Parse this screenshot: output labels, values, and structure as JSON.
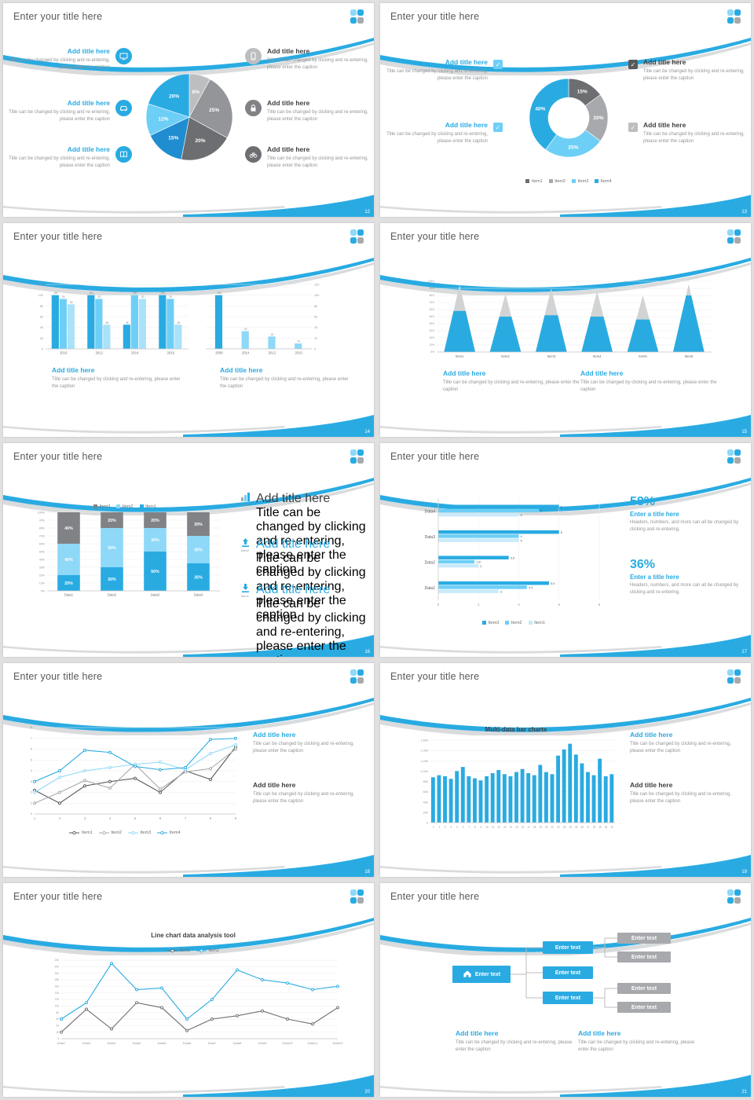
{
  "window": {
    "background": "#e0e0e0"
  },
  "common": {
    "slide_title": "Enter your title here",
    "add_title": "Add title here",
    "caption": "Title can be changed by clicking and re-entering, please enter the caption",
    "stat_caption": "Headers, numbers, and more can all be changed by clicking and re-entering.",
    "enter_a_title": "Enter a title here",
    "enter_text": "Enter text",
    "accent_blue": "#29abe2",
    "light_blue": "#6dcff6",
    "dark_gray": "#6d6e71",
    "mid_gray": "#a7a9ac"
  },
  "slides": [
    {
      "page": "12"
    },
    {
      "page": "13"
    },
    {
      "page": "14"
    },
    {
      "page": "15"
    },
    {
      "page": "16"
    },
    {
      "page": "17",
      "stat1": "58%",
      "stat2": "36%"
    },
    {
      "page": "18"
    },
    {
      "page": "19"
    },
    {
      "page": "20"
    },
    {
      "page": "21"
    }
  ],
  "chart_data": [
    {
      "slide_page": "12",
      "type": "pie",
      "segments": [
        {
          "label": "8%",
          "value": 8,
          "color": "#bcbec0"
        },
        {
          "label": "25%",
          "value": 25,
          "color": "#939598"
        },
        {
          "label": "20%",
          "value": 20,
          "color": "#6d6e71"
        },
        {
          "label": "15%",
          "value": 15,
          "color": "#1f8dd0"
        },
        {
          "label": "12%",
          "value": 12,
          "color": "#6dcff6"
        },
        {
          "label": "20%",
          "value": 20,
          "color": "#29abe2"
        }
      ]
    },
    {
      "slide_page": "13",
      "type": "pie",
      "donut": true,
      "segments": [
        {
          "label": "15%",
          "value": 15,
          "color": "#6d6e71"
        },
        {
          "label": "20%",
          "value": 20,
          "color": "#a7a9ac"
        },
        {
          "label": "25%",
          "value": 25,
          "color": "#6dcff6"
        },
        {
          "label": "40%",
          "value": 40,
          "color": "#29abe2"
        }
      ],
      "legend": [
        {
          "label": "Item1",
          "color": "#6d6e71"
        },
        {
          "label": "Item2",
          "color": "#a7a9ac"
        },
        {
          "label": "Item3",
          "color": "#6dcff6"
        },
        {
          "label": "Item4",
          "color": "#29abe2"
        }
      ]
    },
    {
      "slide_page": "14",
      "type": "bar",
      "categories": [
        "2010",
        "2012",
        "2014",
        "2016"
      ],
      "series": [
        {
          "name": "series1",
          "color": "#29abe2",
          "values": [
            100,
            100,
            45,
            100
          ]
        },
        {
          "name": "series2",
          "color": "#6dcff6",
          "values": [
            93,
            93,
            100,
            93
          ]
        },
        {
          "name": "series3",
          "color": "#a9e2f9",
          "values": [
            83,
            45,
            93,
            45
          ]
        }
      ],
      "ylim": [
        0,
        120
      ],
      "ytick_step": 20
    },
    {
      "slide_page": "14",
      "type": "bar",
      "categories": [
        "2008",
        "2014",
        "2012",
        "2010"
      ],
      "series": [
        {
          "name": "series1",
          "colors": [
            "#29abe2",
            "#8ed8f8",
            "#8ed8f8",
            "#8ed8f8"
          ],
          "values": [
            100,
            33,
            23,
            10
          ]
        }
      ],
      "ylim": [
        0,
        120
      ],
      "ytick_step": 20,
      "axis_side": "right"
    },
    {
      "slide_page": "15",
      "type": "pyramid",
      "categories": [
        "Item1",
        "Item2",
        "Item3",
        "Item4",
        "Item5",
        "Item6"
      ],
      "total_pct": [
        95,
        82,
        90,
        86,
        80,
        96
      ],
      "filled_pct": [
        58,
        50,
        52,
        50,
        46,
        80
      ],
      "fill_color": "#29abe2",
      "top_color": "#d1d3d4",
      "ylim": [
        0,
        100
      ],
      "ytick_step": 10
    },
    {
      "slide_page": "16",
      "type": "stacked_bar",
      "categories": [
        "Data1",
        "Data2",
        "Data3",
        "Data4"
      ],
      "series": [
        {
          "name": "Item1",
          "color": "#29abe2",
          "values": [
            20,
            30,
            50,
            35
          ]
        },
        {
          "name": "Item2",
          "color": "#8ed8f8",
          "values": [
            40,
            50,
            30,
            35
          ]
        },
        {
          "name": "Item3",
          "color": "#808285",
          "values": [
            40,
            20,
            20,
            30
          ]
        }
      ],
      "legend": [
        {
          "label": "Item3",
          "color": "#808285"
        },
        {
          "label": "Item2",
          "color": "#8ed8f8"
        },
        {
          "label": "Item1",
          "color": "#29abe2"
        }
      ],
      "ylim": [
        0,
        100
      ],
      "ytick_step": 10
    },
    {
      "slide_page": "17",
      "type": "hbar",
      "categories": [
        "Data1",
        "Data2",
        "Data3",
        "Data4"
      ],
      "series": [
        {
          "name": "Item3",
          "color": "#29abe2",
          "values": [
            5.5,
            3.5,
            6,
            6
          ]
        },
        {
          "name": "Item2",
          "color": "#6dcff6",
          "values": [
            4.4,
            1.8,
            4,
            5
          ]
        },
        {
          "name": "Item1",
          "color": "#c9eafb",
          "values": [
            3,
            2,
            4,
            4
          ]
        }
      ],
      "legend": [
        {
          "label": "Item3",
          "color": "#29abe2"
        },
        {
          "label": "Item2",
          "color": "#6dcff6"
        },
        {
          "label": "Item1",
          "color": "#c9eafb"
        }
      ],
      "xlim": [
        0,
        8
      ],
      "xtick_step": 2
    },
    {
      "slide_page": "18",
      "type": "line",
      "x": [
        "1",
        "2",
        "3",
        "4",
        "5",
        "6",
        "7",
        "8",
        "9"
      ],
      "series": [
        {
          "name": "Item1",
          "color": "#58595b",
          "values": [
            2.2,
            1.0,
            2.6,
            3.0,
            3.3,
            2.0,
            4.0,
            3.2,
            6.2
          ]
        },
        {
          "name": "Item2",
          "color": "#a7a9ac",
          "values": [
            1.0,
            2.0,
            3.1,
            2.4,
            4.6,
            2.3,
            3.9,
            4.2,
            6.0
          ]
        },
        {
          "name": "Item3",
          "color": "#8ed8f8",
          "values": [
            2.0,
            3.4,
            4.0,
            4.3,
            4.6,
            4.8,
            4.1,
            5.6,
            6.4
          ]
        },
        {
          "name": "Item4",
          "color": "#29abe2",
          "values": [
            3.0,
            4.0,
            5.9,
            5.7,
            4.4,
            4.1,
            4.3,
            6.9,
            7.0
          ]
        }
      ],
      "ylim": [
        0,
        8
      ],
      "ytick_step": 1
    },
    {
      "slide_page": "19",
      "title": "Multi-data bar charts",
      "type": "bar",
      "categories": [
        "1",
        "2",
        "3",
        "4",
        "5",
        "6",
        "7",
        "8",
        "9",
        "10",
        "11",
        "12",
        "13",
        "14",
        "15",
        "16",
        "17",
        "18",
        "19",
        "20",
        "21",
        "22",
        "23",
        "24",
        "25",
        "26",
        "27",
        "28",
        "29",
        "30",
        "31"
      ],
      "series": [
        {
          "name": "value",
          "color": "#29abe2",
          "values": [
            880,
            920,
            900,
            850,
            1000,
            1080,
            900,
            860,
            820,
            900,
            960,
            1020,
            940,
            900,
            980,
            1040,
            960,
            920,
            1120,
            980,
            940,
            1300,
            1420,
            1530,
            1320,
            1150,
            980,
            920,
            1240,
            900,
            940
          ]
        }
      ],
      "ylim": [
        0,
        1600
      ],
      "ytick_step": 200
    },
    {
      "slide_page": "20",
      "title": "Line chart data analysis tool",
      "type": "line",
      "x": [
        "Data1",
        "Data2",
        "Data3",
        "Data4",
        "Data5",
        "Data6",
        "Data7",
        "Data8",
        "Data9",
        "Data10",
        "Data11",
        "Data12"
      ],
      "series": [
        {
          "name": "item1",
          "color": "#6d6e71",
          "values": [
            20,
            90,
            30,
            110,
            95,
            25,
            60,
            70,
            85,
            60,
            45,
            95
          ]
        },
        {
          "name": "item2",
          "color": "#29abe2",
          "values": [
            60,
            110,
            230,
            150,
            155,
            60,
            120,
            210,
            180,
            170,
            150,
            160
          ]
        }
      ],
      "ylim": [
        0,
        240
      ],
      "ytick_step": 20
    },
    {
      "slide_page": "21",
      "type": "diagram",
      "root_label": "Enter text",
      "mid_labels": [
        "Enter text",
        "Enter text",
        "Enter text"
      ],
      "leaf_labels": [
        "Enter text",
        "Enter text",
        "Enter text",
        "Enter text"
      ]
    }
  ]
}
